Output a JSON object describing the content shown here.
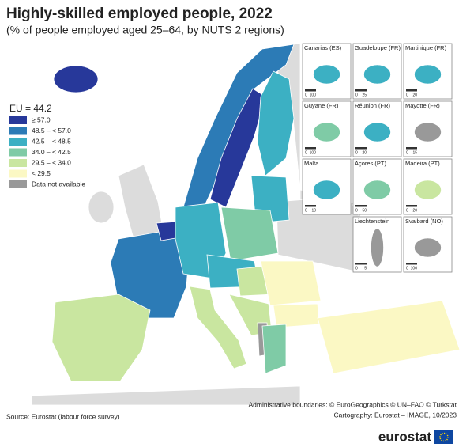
{
  "header": {
    "title": "Highly-skilled employed people, 2022",
    "subtitle": "(% of people employed aged 25–64, by NUTS 2 regions)"
  },
  "legend": {
    "title": "EU = 44.2",
    "items": [
      {
        "label": "≥ 57.0",
        "color": "#27389a"
      },
      {
        "label": "48.5 – < 57.0",
        "color": "#2c7bb6"
      },
      {
        "label": "42.5 – < 48.5",
        "color": "#3cb0c3"
      },
      {
        "label": "34.0 – < 42.5",
        "color": "#7fcba6"
      },
      {
        "label": "29.5 – < 34.0",
        "color": "#c9e6a0"
      },
      {
        "label": "< 29.5",
        "color": "#fbf8c4"
      },
      {
        "label": "Data not available",
        "color": "#999999"
      }
    ]
  },
  "insets": [
    {
      "name": "Canarias (ES)",
      "scale": [
        "0",
        "100"
      ]
    },
    {
      "name": "Guadeloupe (FR)",
      "scale": [
        "0",
        "25"
      ]
    },
    {
      "name": "Martinique (FR)",
      "scale": [
        "0",
        "20"
      ]
    },
    {
      "name": "Guyane (FR)",
      "scale": [
        "0",
        "100"
      ]
    },
    {
      "name": "Réunion (FR)",
      "scale": [
        "0",
        "20"
      ]
    },
    {
      "name": "Mayotte (FR)",
      "scale": [
        "0",
        "15"
      ]
    },
    {
      "name": "Malta",
      "scale": [
        "0",
        "10"
      ]
    },
    {
      "name": "Açores (PT)",
      "scale": [
        "0",
        "50"
      ]
    },
    {
      "name": "Madeira (PT)",
      "scale": [
        "0",
        "20"
      ]
    },
    {
      "name": "Liechtenstein",
      "scale": [
        "0",
        "5"
      ]
    },
    {
      "name": "Svalbard (NO)",
      "scale": [
        "0",
        "100"
      ]
    }
  ],
  "footer": {
    "source": "Source: Eurostat (labour force survey)",
    "boundaries": "Administrative boundaries: © EuroGeographics © UN–FAO © Turkstat",
    "cartography": "Cartography: Eurostat – IMAGE, 10/2023",
    "logo": "eurostat"
  }
}
